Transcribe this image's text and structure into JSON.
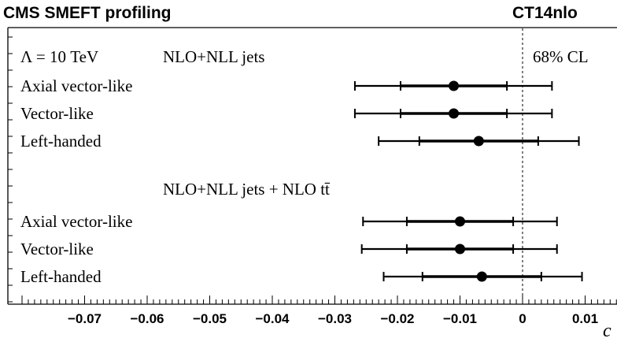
{
  "chart_data": {
    "type": "scatter",
    "title_left": "CMS SMEFT profiling",
    "title_right": "CT14nlo",
    "xlabel": "c",
    "xlim": [
      -0.08,
      0.02
    ],
    "ticks": [
      {
        "value": -0.07,
        "label": "−0.07"
      },
      {
        "value": -0.06,
        "label": "−0.06"
      },
      {
        "value": -0.05,
        "label": "−0.05"
      },
      {
        "value": -0.04,
        "label": "−0.04"
      },
      {
        "value": -0.03,
        "label": "−0.03"
      },
      {
        "value": -0.02,
        "label": "−0.02"
      },
      {
        "value": -0.01,
        "label": "−0.01"
      },
      {
        "value": 0,
        "label": "0"
      },
      {
        "value": 0.01,
        "label": "0.01"
      }
    ],
    "reference_line": 0,
    "annotations": {
      "scale": "Λ = 10 TeV",
      "cl": "68% CL",
      "group1_label": "NLO+NLL jets",
      "group2_label": "NLO+NLL jets + NLO tt̄"
    },
    "groups": [
      {
        "name": "NLO+NLL jets",
        "points": [
          {
            "label": "Axial vector-like",
            "value": -0.011,
            "inner": [
              -0.0195,
              -0.0025
            ],
            "outer": [
              -0.0268,
              0.0047
            ]
          },
          {
            "label": "Vector-like",
            "value": -0.011,
            "inner": [
              -0.0195,
              -0.0025
            ],
            "outer": [
              -0.0268,
              0.0047
            ]
          },
          {
            "label": "Left-handed",
            "value": -0.007,
            "inner": [
              -0.0165,
              0.0025
            ],
            "outer": [
              -0.023,
              0.009
            ]
          }
        ]
      },
      {
        "name": "NLO+NLL jets + NLO tt̄",
        "points": [
          {
            "label": "Axial vector-like",
            "value": -0.01,
            "inner": [
              -0.0185,
              -0.0015
            ],
            "outer": [
              -0.0255,
              0.0055
            ]
          },
          {
            "label": "Vector-like",
            "value": -0.01,
            "inner": [
              -0.0185,
              -0.0015
            ],
            "outer": [
              -0.0257,
              0.0055
            ]
          },
          {
            "label": "Left-handed",
            "value": -0.0065,
            "inner": [
              -0.016,
              0.003
            ],
            "outer": [
              -0.0222,
              0.0095
            ]
          }
        ]
      }
    ]
  }
}
